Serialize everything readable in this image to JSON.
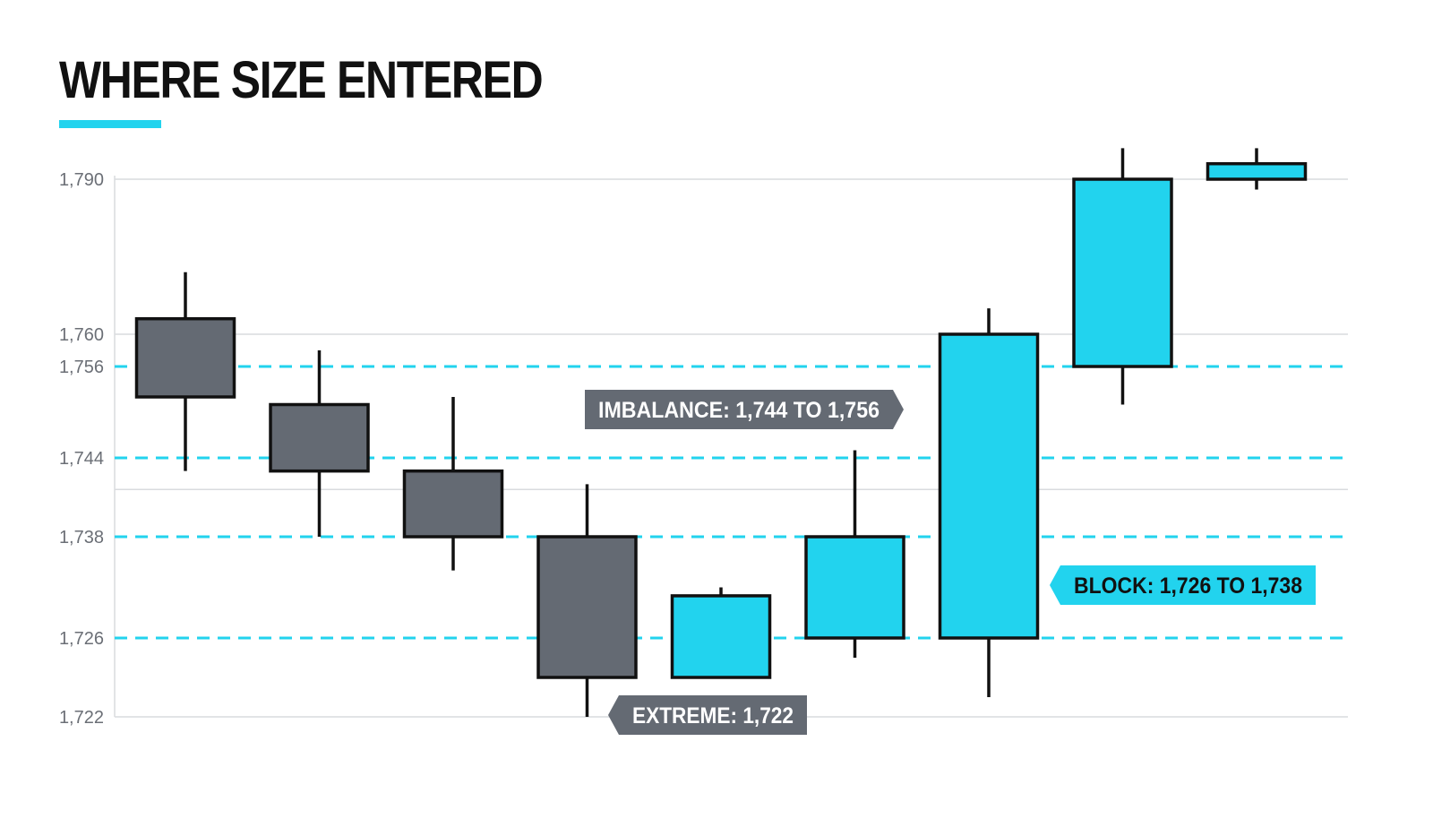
{
  "title": "WHERE SIZE ENTERED",
  "colors": {
    "accent": "#22d3ee",
    "bearish": "#646a73",
    "bullish": "#22d3ee",
    "outline": "#111111",
    "grid": "#d9dbde",
    "label_dark_bg": "#646a73",
    "label_dark_text": "#ffffff",
    "label_accent_text": "#111111"
  },
  "chart_data": {
    "type": "candlestick",
    "title": "WHERE SIZE ENTERED",
    "y_ticks": [
      1722,
      1726,
      1738,
      1744,
      1756,
      1760,
      1790
    ],
    "y_ticks_dashed": [
      1726,
      1738,
      1744,
      1756
    ],
    "y_ticks_solid": [
      1722,
      1760,
      1790
    ],
    "candles": [
      {
        "open": 1763,
        "high": 1772,
        "low": 1743,
        "close": 1752,
        "direction": "down"
      },
      {
        "open": 1751,
        "high": 1758,
        "low": 1738,
        "close": 1743,
        "direction": "down"
      },
      {
        "open": 1743,
        "high": 1752,
        "low": 1734,
        "close": 1738,
        "direction": "down"
      },
      {
        "open": 1738,
        "high": 1742,
        "low": 1722,
        "close": 1724,
        "direction": "down"
      },
      {
        "open": 1724,
        "high": 1732,
        "low": 1724,
        "close": 1731,
        "direction": "up"
      },
      {
        "open": 1726,
        "high": 1745,
        "low": 1725,
        "close": 1738,
        "direction": "up"
      },
      {
        "open": 1726,
        "high": 1765,
        "low": 1723,
        "close": 1760,
        "direction": "up"
      },
      {
        "open": 1756,
        "high": 1796,
        "low": 1751,
        "close": 1790,
        "direction": "up"
      },
      {
        "open": 1790,
        "high": 1796,
        "low": 1788,
        "close": 1793,
        "direction": "up"
      }
    ],
    "annotations": [
      {
        "id": "imbalance",
        "text": "IMBALANCE: 1,744 TO 1,756",
        "style": "dark",
        "pointer": "right"
      },
      {
        "id": "block",
        "text": "BLOCK: 1,726 TO 1,738",
        "style": "accent",
        "pointer": "left"
      },
      {
        "id": "extreme",
        "text": "EXTREME: 1,722",
        "style": "dark",
        "pointer": "left"
      }
    ]
  }
}
